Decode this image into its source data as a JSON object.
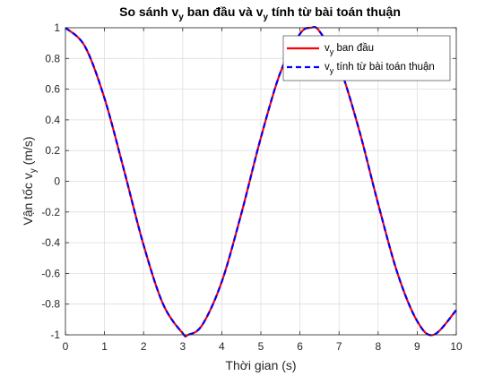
{
  "chart_data": {
    "type": "line",
    "title": {
      "prefix": "So sánh v",
      "sub1": "y",
      "middle": " ban đầu và v",
      "sub2": "y",
      "suffix": " tính từ bài toán thuận"
    },
    "xlabel": "Thời gian (s)",
    "ylabel": {
      "prefix": "Vận tốc v",
      "sub": "y",
      "suffix": " (m/s)"
    },
    "xlim": [
      0,
      10
    ],
    "ylim": [
      -1,
      1
    ],
    "xticks": [
      0,
      1,
      2,
      3,
      4,
      5,
      6,
      7,
      8,
      9,
      10
    ],
    "xtick_labels": [
      "0",
      "1",
      "2",
      "3",
      "4",
      "5",
      "6",
      "7",
      "8",
      "9",
      "10"
    ],
    "yticks": [
      -1,
      -0.8,
      -0.6,
      -0.4,
      -0.2,
      0,
      0.2,
      0.4,
      0.6,
      0.8,
      1
    ],
    "ytick_labels": [
      "-1",
      "-0.8",
      "-0.6",
      "-0.4",
      "-0.2",
      "0",
      "0.2",
      "0.4",
      "0.6",
      "0.8",
      "1"
    ],
    "grid": true,
    "legend_position": "top-right",
    "x": [
      0,
      0.5,
      1,
      1.5,
      2,
      2.5,
      3,
      3.14,
      3.5,
      4,
      4.5,
      5,
      5.5,
      6,
      6.28,
      6.5,
      7,
      7.5,
      8,
      8.5,
      9,
      9.42,
      10
    ],
    "series": [
      {
        "legend": {
          "prefix": "v",
          "sub": "y",
          "suffix": " ban đầu"
        },
        "color": "#ff0000",
        "dash": "solid",
        "values": [
          1,
          0.878,
          0.54,
          0.071,
          -0.416,
          -0.801,
          -0.99,
          -1,
          -0.936,
          -0.654,
          -0.211,
          0.284,
          0.709,
          0.96,
          1,
          0.977,
          0.754,
          0.347,
          -0.146,
          -0.602,
          -0.911,
          -1,
          -0.839
        ]
      },
      {
        "legend": {
          "prefix": "v",
          "sub": "y",
          "suffix": " tính từ bài toán thuận"
        },
        "color": "#0000ff",
        "dash": "dashed",
        "values": [
          1,
          0.878,
          0.54,
          0.071,
          -0.416,
          -0.801,
          -0.99,
          -1,
          -0.936,
          -0.654,
          -0.211,
          0.284,
          0.709,
          0.96,
          1,
          0.977,
          0.754,
          0.347,
          -0.146,
          -0.602,
          -0.911,
          -1,
          -0.839
        ]
      }
    ]
  }
}
